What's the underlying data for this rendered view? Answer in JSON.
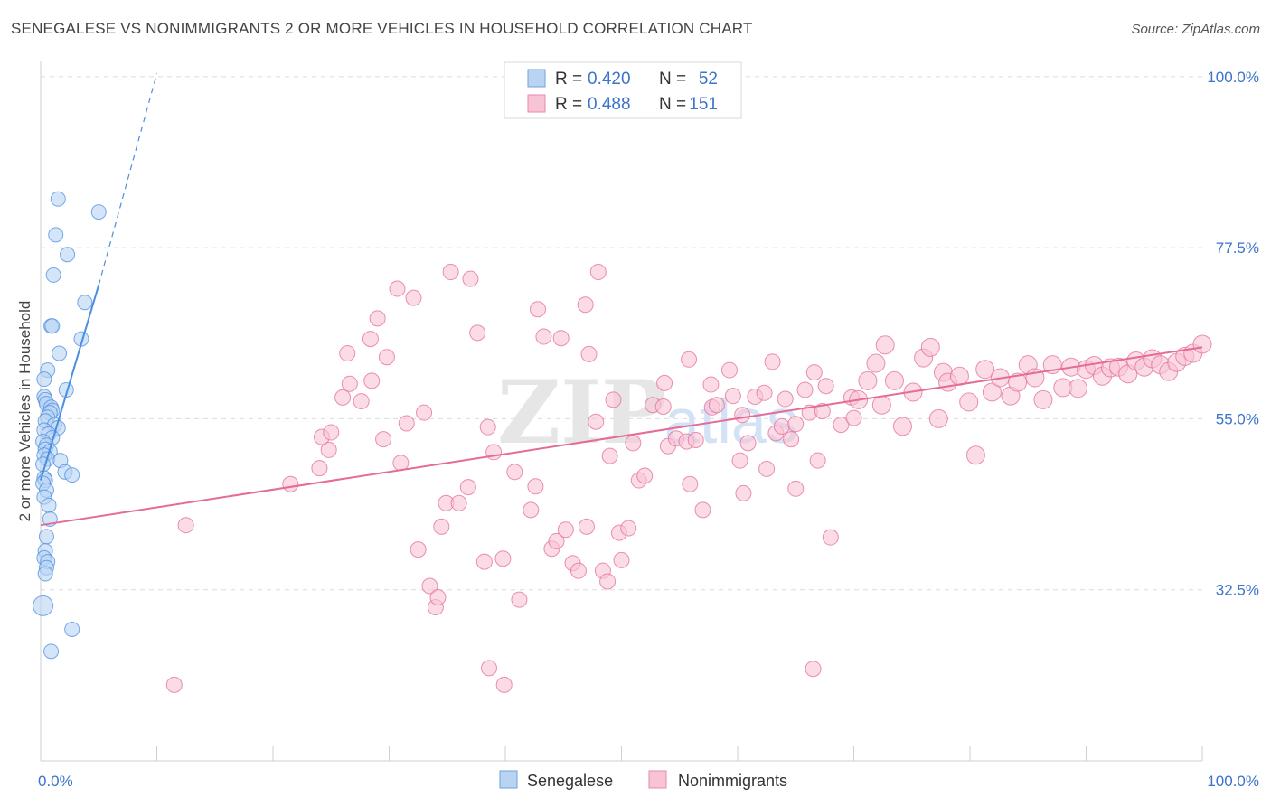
{
  "header": {
    "title": "SENEGALESE VS NONIMMIGRANTS 2 OR MORE VEHICLES IN HOUSEHOLD CORRELATION CHART",
    "source": "Source: ZipAtlas.com"
  },
  "watermark": {
    "zip": "ZIP",
    "atlas": "atlas"
  },
  "chart_data": {
    "type": "scatter",
    "title": "SENEGALESE VS NONIMMIGRANTS 2 OR MORE VEHICLES IN HOUSEHOLD CORRELATION CHART",
    "xlabel": "",
    "ylabel": "2 or more Vehicles in Household",
    "xlim": [
      0,
      100
    ],
    "ylim": [
      10,
      102
    ],
    "x_tick_labels": [
      {
        "value": 0,
        "label": "0.0%"
      },
      {
        "value": 100,
        "label": "100.0%"
      }
    ],
    "y_tick_labels": [
      {
        "value": 32.5,
        "label": "32.5%"
      },
      {
        "value": 55.0,
        "label": "55.0%"
      },
      {
        "value": 77.5,
        "label": "77.5%"
      },
      {
        "value": 100.0,
        "label": "100.0%"
      }
    ],
    "grid": true,
    "legend_position": "bottom-center",
    "stats_box": [
      {
        "series": "Senegalese",
        "r_label": "R =",
        "r_value": "0.420",
        "n_label": "N =",
        "n_value": "52"
      },
      {
        "series": "Nonimmigrants",
        "r_label": "R =",
        "r_value": "0.488",
        "n_label": "N =",
        "n_value": "151"
      }
    ],
    "series": [
      {
        "name": "Senegalese",
        "color": "#4a8ee0",
        "fill": "#b9d3f3",
        "trend": {
          "x0": 0.0,
          "y0": 46.9,
          "x1": 5.0,
          "y1": 72.6,
          "dash_to_x": 10.0,
          "dash_to_y": 100.4
        },
        "points": [
          [
            1.5,
            83.9
          ],
          [
            5.0,
            82.2
          ],
          [
            1.3,
            79.2
          ],
          [
            2.3,
            76.6
          ],
          [
            1.1,
            73.9
          ],
          [
            3.8,
            70.3
          ],
          [
            3.5,
            65.5
          ],
          [
            0.9,
            67.2
          ],
          [
            1.0,
            67.2
          ],
          [
            1.6,
            63.6
          ],
          [
            0.6,
            61.4
          ],
          [
            0.3,
            60.2
          ],
          [
            2.2,
            58.8
          ],
          [
            0.3,
            57.9
          ],
          [
            0.4,
            57.5
          ],
          [
            0.5,
            57.0
          ],
          [
            0.9,
            56.5
          ],
          [
            1.0,
            56.1
          ],
          [
            0.8,
            55.8
          ],
          [
            0.6,
            55.2
          ],
          [
            0.4,
            54.7
          ],
          [
            1.2,
            54.2
          ],
          [
            1.5,
            53.8
          ],
          [
            0.3,
            53.5
          ],
          [
            0.7,
            53.0
          ],
          [
            1.0,
            52.5
          ],
          [
            0.2,
            52.0
          ],
          [
            0.5,
            51.5
          ],
          [
            0.4,
            51.0
          ],
          [
            0.8,
            50.7
          ],
          [
            0.3,
            50.2
          ],
          [
            0.6,
            49.7
          ],
          [
            1.7,
            49.5
          ],
          [
            0.2,
            49.0
          ],
          [
            2.1,
            48.0
          ],
          [
            2.7,
            47.6
          ],
          [
            0.3,
            47.2
          ],
          [
            0.4,
            46.9
          ],
          [
            0.2,
            46.5
          ],
          [
            0.5,
            45.6
          ],
          [
            0.3,
            44.7
          ],
          [
            0.7,
            43.6
          ],
          [
            0.8,
            41.8
          ],
          [
            0.5,
            39.5
          ],
          [
            0.4,
            37.6
          ],
          [
            0.3,
            36.7
          ],
          [
            0.6,
            36.2
          ],
          [
            0.5,
            35.4
          ],
          [
            0.4,
            34.6
          ],
          [
            0.2,
            30.4
          ],
          [
            2.7,
            27.3
          ],
          [
            0.9,
            24.4
          ]
        ]
      },
      {
        "name": "Nonimmigrants",
        "color": "#e46c97",
        "fill": "#f8c3d5",
        "trend": {
          "x0": 0.0,
          "y0": 41.0,
          "x1": 100.0,
          "y1": 64.4
        },
        "points": [
          [
            12.5,
            41.0
          ],
          [
            11.5,
            20.0
          ],
          [
            21.5,
            46.4
          ],
          [
            24.0,
            48.5
          ],
          [
            24.8,
            50.9
          ],
          [
            24.2,
            52.6
          ],
          [
            25.0,
            53.2
          ],
          [
            26.0,
            57.8
          ],
          [
            26.6,
            59.6
          ],
          [
            26.4,
            63.6
          ],
          [
            27.6,
            57.3
          ],
          [
            28.4,
            65.5
          ],
          [
            28.5,
            60.0
          ],
          [
            29.0,
            68.2
          ],
          [
            29.5,
            52.3
          ],
          [
            29.8,
            63.1
          ],
          [
            30.7,
            72.1
          ],
          [
            31.0,
            49.2
          ],
          [
            31.5,
            54.4
          ],
          [
            32.1,
            70.9
          ],
          [
            32.5,
            37.8
          ],
          [
            33.0,
            55.8
          ],
          [
            33.5,
            33.0
          ],
          [
            34.0,
            30.2
          ],
          [
            34.2,
            31.5
          ],
          [
            34.5,
            40.8
          ],
          [
            34.9,
            43.9
          ],
          [
            35.3,
            74.3
          ],
          [
            36.0,
            43.9
          ],
          [
            36.8,
            46.0
          ],
          [
            37.0,
            73.4
          ],
          [
            37.6,
            66.3
          ],
          [
            38.2,
            36.2
          ],
          [
            38.5,
            53.9
          ],
          [
            38.6,
            22.2
          ],
          [
            39.0,
            50.6
          ],
          [
            39.8,
            36.6
          ],
          [
            39.9,
            20.0
          ],
          [
            40.8,
            48.0
          ],
          [
            41.2,
            31.2
          ],
          [
            42.2,
            43.0
          ],
          [
            42.6,
            46.1
          ],
          [
            42.8,
            69.4
          ],
          [
            43.3,
            65.8
          ],
          [
            44.0,
            37.9
          ],
          [
            44.4,
            38.9
          ],
          [
            44.8,
            65.6
          ],
          [
            45.2,
            40.4
          ],
          [
            45.8,
            36.0
          ],
          [
            46.3,
            35.0
          ],
          [
            46.9,
            70.0
          ],
          [
            47.0,
            40.8
          ],
          [
            47.2,
            63.5
          ],
          [
            47.8,
            54.6
          ],
          [
            48.0,
            74.3
          ],
          [
            48.4,
            35.0
          ],
          [
            48.8,
            33.6
          ],
          [
            49.0,
            50.1
          ],
          [
            49.3,
            57.5
          ],
          [
            49.8,
            40.0
          ],
          [
            50.6,
            40.6
          ],
          [
            51.0,
            51.8
          ],
          [
            51.5,
            46.9
          ],
          [
            52.0,
            47.5
          ],
          [
            52.7,
            56.8
          ],
          [
            53.6,
            56.6
          ],
          [
            53.7,
            59.7
          ],
          [
            54.0,
            51.4
          ],
          [
            54.7,
            52.4
          ],
          [
            55.6,
            52.0
          ],
          [
            55.8,
            62.8
          ],
          [
            55.9,
            46.4
          ],
          [
            56.4,
            52.2
          ],
          [
            57.7,
            59.5
          ],
          [
            57.8,
            56.5
          ],
          [
            58.2,
            56.8
          ],
          [
            59.3,
            61.4
          ],
          [
            59.6,
            58.0
          ],
          [
            60.2,
            49.5
          ],
          [
            60.4,
            55.5
          ],
          [
            60.9,
            51.8
          ],
          [
            61.5,
            57.9
          ],
          [
            62.3,
            58.4
          ],
          [
            63.0,
            62.5
          ],
          [
            63.3,
            53.1
          ],
          [
            63.8,
            54.0
          ],
          [
            64.1,
            57.6
          ],
          [
            64.6,
            52.3
          ],
          [
            65.0,
            54.3
          ],
          [
            65.8,
            58.8
          ],
          [
            66.2,
            55.8
          ],
          [
            66.6,
            61.1
          ],
          [
            66.9,
            49.5
          ],
          [
            67.3,
            56.0
          ],
          [
            67.6,
            59.3
          ],
          [
            68.9,
            54.2
          ],
          [
            69.8,
            57.8
          ],
          [
            70.0,
            55.1
          ],
          [
            70.4,
            57.5
          ],
          [
            71.2,
            60.0
          ],
          [
            71.9,
            62.3
          ],
          [
            72.4,
            56.8
          ],
          [
            72.7,
            64.7
          ],
          [
            73.5,
            60.0
          ],
          [
            74.2,
            54.0
          ],
          [
            75.1,
            58.5
          ],
          [
            76.0,
            63.0
          ],
          [
            76.6,
            64.4
          ],
          [
            77.3,
            55.0
          ],
          [
            77.7,
            61.1
          ],
          [
            78.1,
            59.8
          ],
          [
            79.1,
            60.6
          ],
          [
            79.9,
            57.2
          ],
          [
            80.5,
            50.2
          ],
          [
            81.3,
            61.5
          ],
          [
            81.9,
            58.5
          ],
          [
            82.6,
            60.4
          ],
          [
            83.5,
            58.0
          ],
          [
            84.1,
            59.8
          ],
          [
            85.0,
            62.1
          ],
          [
            85.6,
            60.4
          ],
          [
            86.3,
            57.5
          ],
          [
            87.1,
            62.1
          ],
          [
            88.0,
            59.1
          ],
          [
            88.7,
            61.8
          ],
          [
            89.3,
            59.0
          ],
          [
            90.0,
            61.5
          ],
          [
            90.7,
            62.0
          ],
          [
            91.4,
            60.6
          ],
          [
            92.1,
            61.7
          ],
          [
            92.8,
            61.8
          ],
          [
            93.6,
            60.9
          ],
          [
            94.3,
            62.6
          ],
          [
            95.0,
            61.8
          ],
          [
            95.7,
            62.9
          ],
          [
            96.4,
            62.1
          ],
          [
            97.1,
            61.2
          ],
          [
            97.8,
            62.4
          ],
          [
            98.5,
            63.2
          ],
          [
            99.2,
            63.6
          ],
          [
            100.0,
            64.8
          ],
          [
            68.0,
            39.4
          ],
          [
            50.0,
            36.4
          ],
          [
            60.5,
            45.2
          ],
          [
            65.0,
            45.8
          ],
          [
            57.0,
            43.0
          ],
          [
            62.5,
            48.4
          ],
          [
            66.5,
            22.1
          ]
        ]
      }
    ]
  },
  "legend": {
    "items": [
      {
        "label": "Senegalese"
      },
      {
        "label": "Nonimmigrants"
      }
    ]
  }
}
